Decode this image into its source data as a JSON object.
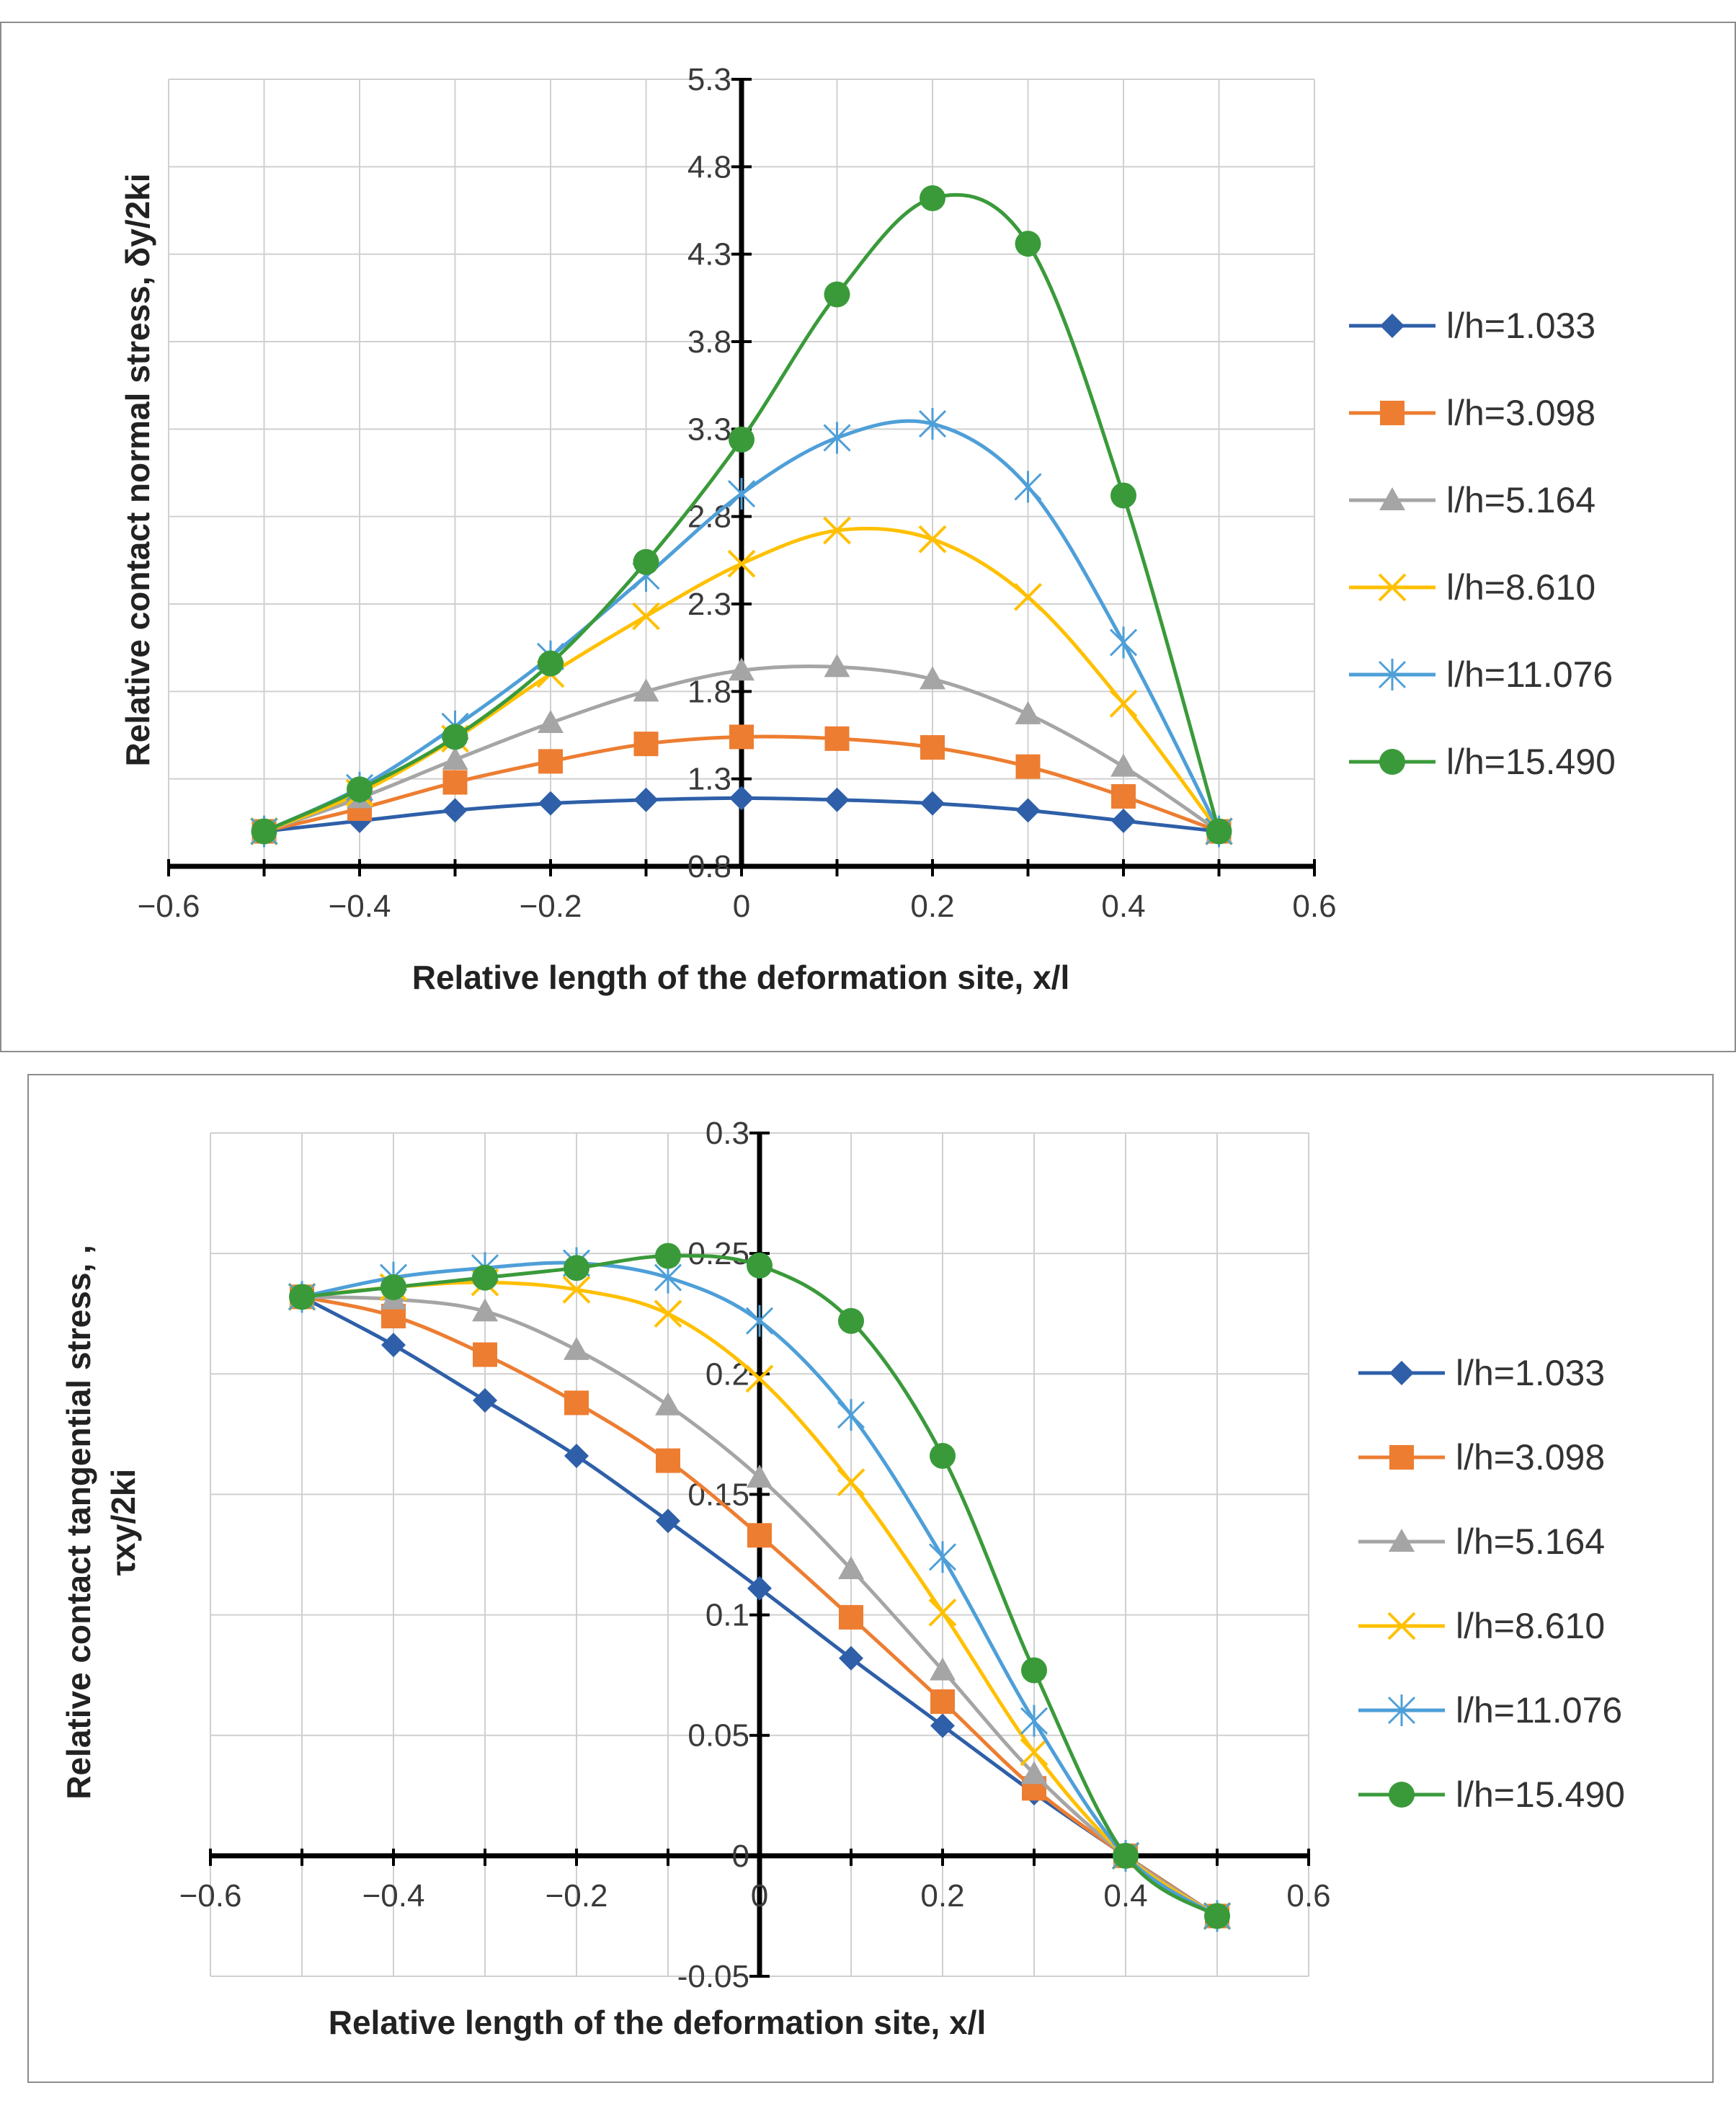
{
  "chart_data": [
    {
      "type": "line",
      "title": "",
      "xlabel": "Relative length of the deformation site, x/l",
      "ylabel": "Relative contact normal stress, δy/2ki",
      "xlim": [
        -0.6,
        0.6
      ],
      "ylim": [
        0.8,
        5.3
      ],
      "x_ticks": [
        -0.6,
        -0.4,
        -0.2,
        0,
        0.2,
        0.4,
        0.6
      ],
      "x_tick_labels": [
        "−0.6",
        "−0.4",
        "−0.2",
        "0",
        "0.2",
        "0.4",
        "0.6"
      ],
      "y_ticks": [
        0.8,
        1.3,
        1.8,
        2.3,
        2.8,
        3.3,
        3.8,
        4.3,
        4.8,
        5.3
      ],
      "y_tick_labels": [
        "0.8",
        "1.3",
        "1.8",
        "2.3",
        "2.8",
        "3.3",
        "3.8",
        "4.3",
        "4.8",
        "5.3"
      ],
      "grid": true,
      "legend_position": "right",
      "x": [
        -0.5,
        -0.4,
        -0.3,
        -0.2,
        -0.1,
        0,
        0.1,
        0.2,
        0.3,
        0.4,
        0.5
      ],
      "series": [
        {
          "name": "l/h=1.033",
          "color": "#2e5fa8",
          "marker": "diamond",
          "values": [
            1.0,
            1.06,
            1.12,
            1.16,
            1.18,
            1.19,
            1.18,
            1.16,
            1.12,
            1.06,
            1.0
          ]
        },
        {
          "name": "l/h=3.098",
          "color": "#ed7d31",
          "marker": "square",
          "values": [
            1.0,
            1.13,
            1.28,
            1.4,
            1.5,
            1.54,
            1.53,
            1.48,
            1.37,
            1.2,
            1.0
          ]
        },
        {
          "name": "l/h=5.164",
          "color": "#a5a5a5",
          "marker": "triangle",
          "values": [
            1.0,
            1.19,
            1.41,
            1.62,
            1.8,
            1.92,
            1.94,
            1.87,
            1.67,
            1.37,
            1.0
          ]
        },
        {
          "name": "l/h=8.610",
          "color": "#ffc000",
          "marker": "x",
          "values": [
            1.0,
            1.22,
            1.53,
            1.9,
            2.23,
            2.53,
            2.72,
            2.67,
            2.34,
            1.73,
            1.0
          ]
        },
        {
          "name": "l/h=11.076",
          "color": "#4e9fd8",
          "marker": "star",
          "values": [
            1.0,
            1.25,
            1.6,
            2.0,
            2.46,
            2.93,
            3.25,
            3.33,
            2.97,
            2.08,
            1.0
          ]
        },
        {
          "name": "l/h=15.490",
          "color": "#3a9a3a",
          "marker": "circle",
          "values": [
            1.0,
            1.24,
            1.54,
            1.96,
            2.54,
            3.24,
            4.07,
            4.62,
            4.36,
            2.92,
            1.0
          ]
        }
      ]
    },
    {
      "type": "line",
      "title": "",
      "xlabel": "Relative length of the deformation site, x/l",
      "ylabel_lines": [
        "Relative contact tangential stress, ,",
        "τxy/2ki"
      ],
      "xlim": [
        -0.6,
        0.6
      ],
      "ylim": [
        -0.05,
        0.3
      ],
      "x_ticks": [
        -0.6,
        -0.4,
        -0.2,
        0,
        0.2,
        0.4,
        0.6
      ],
      "x_tick_labels": [
        "−0.6",
        "−0.4",
        "−0.2",
        "0",
        "0.2",
        "0.4",
        "0.6"
      ],
      "y_ticks": [
        -0.05,
        0,
        0.05,
        0.1,
        0.15,
        0.2,
        0.25,
        0.3
      ],
      "y_tick_labels": [
        "-0.05",
        "0",
        "0.05",
        "0.1",
        "0.15",
        "0.2",
        "0.25",
        "0.3"
      ],
      "grid": true,
      "legend_position": "right",
      "x": [
        -0.5,
        -0.4,
        -0.3,
        -0.2,
        -0.1,
        0,
        0.1,
        0.2,
        0.3,
        0.4,
        0.5
      ],
      "series": [
        {
          "name": "l/h=1.033",
          "color": "#2e5fa8",
          "marker": "diamond",
          "values": [
            0.232,
            0.212,
            0.189,
            0.166,
            0.139,
            0.111,
            0.082,
            0.054,
            0.026,
            0.0,
            -0.025
          ]
        },
        {
          "name": "l/h=3.098",
          "color": "#ed7d31",
          "marker": "square",
          "values": [
            0.232,
            0.224,
            0.208,
            0.188,
            0.164,
            0.133,
            0.099,
            0.064,
            0.028,
            0.0,
            -0.025
          ]
        },
        {
          "name": "l/h=5.164",
          "color": "#a5a5a5",
          "marker": "triangle",
          "values": [
            0.232,
            0.231,
            0.226,
            0.21,
            0.187,
            0.157,
            0.119,
            0.077,
            0.034,
            0.0,
            -0.025
          ]
        },
        {
          "name": "l/h=8.610",
          "color": "#ffc000",
          "marker": "x",
          "values": [
            0.232,
            0.236,
            0.238,
            0.235,
            0.225,
            0.198,
            0.155,
            0.101,
            0.043,
            0.0,
            -0.025
          ]
        },
        {
          "name": "l/h=11.076",
          "color": "#4e9fd8",
          "marker": "star",
          "values": [
            0.232,
            0.24,
            0.244,
            0.246,
            0.24,
            0.222,
            0.183,
            0.124,
            0.056,
            0.0,
            -0.025
          ]
        },
        {
          "name": "l/h=15.490",
          "color": "#3a9a3a",
          "marker": "circle",
          "values": [
            0.232,
            0.236,
            0.24,
            0.244,
            0.249,
            0.245,
            0.222,
            0.166,
            0.077,
            0.0,
            -0.025
          ]
        }
      ]
    }
  ]
}
